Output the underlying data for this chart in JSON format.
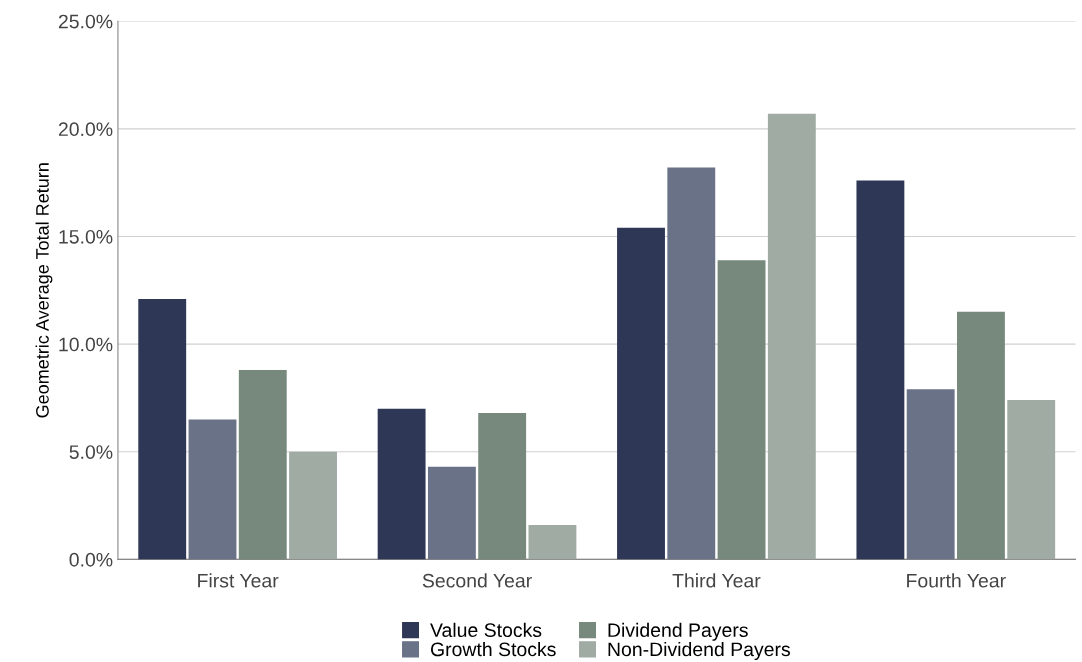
{
  "chart_data": {
    "type": "bar",
    "ylabel": "Geometric Average Total Return",
    "categories": [
      "First Year",
      "Second Year",
      "Third Year",
      "Fourth Year"
    ],
    "series": [
      {
        "name": "Value Stocks",
        "color": "#2e3856",
        "values": [
          12.1,
          7.0,
          15.4,
          17.6
        ]
      },
      {
        "name": "Growth Stocks",
        "color": "#6a7288",
        "values": [
          6.5,
          4.3,
          18.2,
          7.9
        ]
      },
      {
        "name": "Dividend Payers",
        "color": "#77897d",
        "values": [
          8.8,
          6.8,
          13.9,
          11.5
        ]
      },
      {
        "name": "Non-Dividend Payers",
        "color": "#a0aba4",
        "values": [
          5.0,
          1.6,
          20.7,
          7.4
        ]
      }
    ],
    "ylim": [
      0,
      25
    ],
    "yticks": [
      {
        "value": 0,
        "label": "0.0%"
      },
      {
        "value": 5,
        "label": "5.0%"
      },
      {
        "value": 10,
        "label": "10.0%"
      },
      {
        "value": 15,
        "label": "15.0%"
      },
      {
        "value": 20,
        "label": "20.0%"
      },
      {
        "value": 25,
        "label": "25.0%"
      }
    ],
    "grid": "y",
    "legend": "bottom"
  }
}
